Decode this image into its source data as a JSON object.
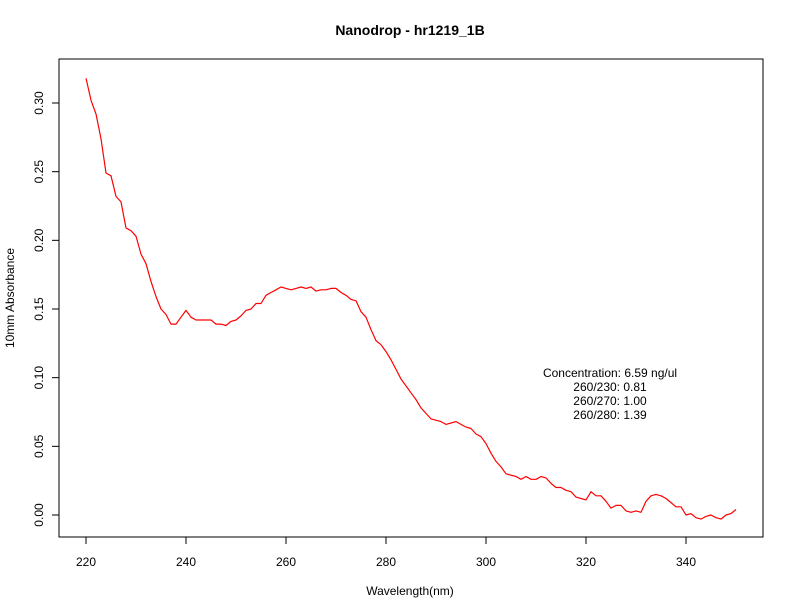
{
  "chart_data": {
    "type": "line",
    "title": "Nanodrop - hr1219_1B",
    "xlabel": "Wavelength(nm)",
    "ylabel": "10mm Absorbance",
    "xlim": [
      220,
      350
    ],
    "ylim": [
      0.0,
      0.32
    ],
    "x_ticks": [
      220,
      240,
      260,
      280,
      300,
      320,
      340
    ],
    "y_ticks": [
      0.0,
      0.05,
      0.1,
      0.15,
      0.2,
      0.25,
      0.3
    ],
    "x_tick_labels": [
      "220",
      "240",
      "260",
      "280",
      "300",
      "320",
      "340"
    ],
    "y_tick_labels": [
      "0.00",
      "0.05",
      "0.10",
      "0.15",
      "0.20",
      "0.25",
      "0.30"
    ],
    "grid": false,
    "series": [
      {
        "color": "#ff0000",
        "x": [
          220,
          221,
          222,
          223,
          224,
          225,
          226,
          227,
          228,
          229,
          230,
          231,
          232,
          233,
          234,
          235,
          236,
          237,
          238,
          239,
          240,
          241,
          242,
          243,
          244,
          245,
          246,
          247,
          248,
          249,
          250,
          251,
          252,
          253,
          254,
          255,
          256,
          257,
          258,
          259,
          260,
          261,
          262,
          263,
          264,
          265,
          266,
          267,
          268,
          269,
          270,
          271,
          272,
          273,
          274,
          275,
          276,
          277,
          278,
          279,
          280,
          281,
          282,
          283,
          284,
          285,
          286,
          287,
          288,
          289,
          290,
          291,
          292,
          293,
          294,
          295,
          296,
          297,
          298,
          299,
          300,
          301,
          302,
          303,
          304,
          305,
          306,
          307,
          308,
          309,
          310,
          311,
          312,
          313,
          314,
          315,
          316,
          317,
          318,
          319,
          320,
          321,
          322,
          323,
          324,
          325,
          326,
          327,
          328,
          329,
          330,
          331,
          332,
          333,
          334,
          335,
          336,
          337,
          338,
          339,
          340,
          341,
          342,
          343,
          344,
          345,
          346,
          347,
          348,
          349,
          350
        ],
        "y": [
          0.318,
          0.302,
          0.292,
          0.274,
          0.249,
          0.247,
          0.232,
          0.228,
          0.209,
          0.207,
          0.203,
          0.19,
          0.183,
          0.17,
          0.159,
          0.15,
          0.146,
          0.139,
          0.139,
          0.144,
          0.149,
          0.144,
          0.142,
          0.142,
          0.142,
          0.142,
          0.139,
          0.139,
          0.138,
          0.141,
          0.142,
          0.145,
          0.149,
          0.15,
          0.154,
          0.154,
          0.16,
          0.162,
          0.164,
          0.166,
          0.165,
          0.164,
          0.165,
          0.166,
          0.165,
          0.166,
          0.163,
          0.164,
          0.164,
          0.165,
          0.165,
          0.162,
          0.16,
          0.157,
          0.156,
          0.148,
          0.144,
          0.135,
          0.127,
          0.124,
          0.119,
          0.113,
          0.106,
          0.099,
          0.094,
          0.089,
          0.084,
          0.078,
          0.074,
          0.07,
          0.069,
          0.068,
          0.066,
          0.067,
          0.068,
          0.066,
          0.064,
          0.063,
          0.059,
          0.057,
          0.052,
          0.045,
          0.039,
          0.035,
          0.03,
          0.029,
          0.028,
          0.026,
          0.028,
          0.026,
          0.026,
          0.028,
          0.027,
          0.023,
          0.02,
          0.02,
          0.018,
          0.017,
          0.013,
          0.012,
          0.011,
          0.017,
          0.014,
          0.014,
          0.01,
          0.005,
          0.007,
          0.007,
          0.003,
          0.002,
          0.003,
          0.002,
          0.01,
          0.014,
          0.015,
          0.014,
          0.012,
          0.009,
          0.006,
          0.006,
          0.0,
          0.001,
          -0.002,
          -0.003,
          -0.001,
          0.0,
          -0.002,
          -0.003,
          0.0,
          0.001,
          0.004
        ]
      }
    ],
    "annotations": [
      "Concentration: 6.59 ng/ul",
      "260/230: 0.81",
      "260/270: 1.00",
      "260/280: 1.39"
    ]
  }
}
